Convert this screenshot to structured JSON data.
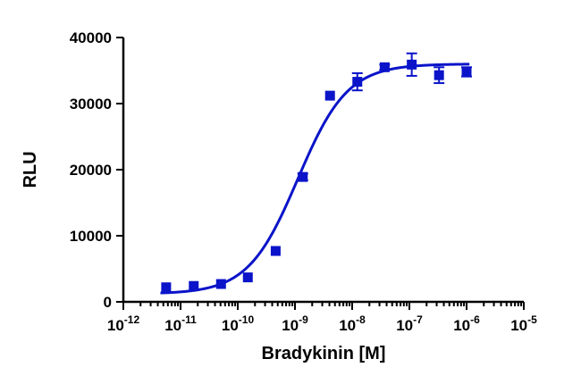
{
  "chart_data": {
    "type": "scatter",
    "xlabel": "Bradykinin [M]",
    "ylabel": "RLU",
    "xscale": "log",
    "xlim": [
      1e-12,
      1e-05
    ],
    "ylim": [
      0,
      40000
    ],
    "yticks": [
      "0",
      "10000",
      "20000",
      "30000",
      "40000"
    ],
    "xticks": [
      {
        "base": "10",
        "exp": "-12"
      },
      {
        "base": "10",
        "exp": "-11"
      },
      {
        "base": "10",
        "exp": "-10"
      },
      {
        "base": "10",
        "exp": "-9"
      },
      {
        "base": "10",
        "exp": "-8"
      },
      {
        "base": "10",
        "exp": "-7"
      },
      {
        "base": "10",
        "exp": "-6"
      },
      {
        "base": "10",
        "exp": "-5"
      }
    ],
    "color": "#0b14c9",
    "grid": false,
    "series": [
      {
        "points": [
          {
            "x": 5.6e-12,
            "y": 2200,
            "err": 0
          },
          {
            "x": 1.7e-11,
            "y": 2400,
            "err": 0
          },
          {
            "x": 5.1e-11,
            "y": 2700,
            "err": 0
          },
          {
            "x": 1.5e-10,
            "y": 3700,
            "err": 0
          },
          {
            "x": 4.6e-10,
            "y": 7700,
            "err": 0
          },
          {
            "x": 1.37e-09,
            "y": 18900,
            "err": 500
          },
          {
            "x": 4.1e-09,
            "y": 31200,
            "err": 0
          },
          {
            "x": 1.23e-08,
            "y": 33300,
            "err": 1300
          },
          {
            "x": 3.7e-08,
            "y": 35500,
            "err": 400
          },
          {
            "x": 1.1e-07,
            "y": 35900,
            "err": 1700
          },
          {
            "x": 3.3e-07,
            "y": 34300,
            "err": 1200
          },
          {
            "x": 1e-06,
            "y": 34800,
            "err": 700
          }
        ],
        "fit": {
          "model": "four-parameter logistic",
          "bottom": 1200,
          "top": 36000,
          "log_ec50": -8.95,
          "hill": 1.0
        }
      }
    ]
  }
}
